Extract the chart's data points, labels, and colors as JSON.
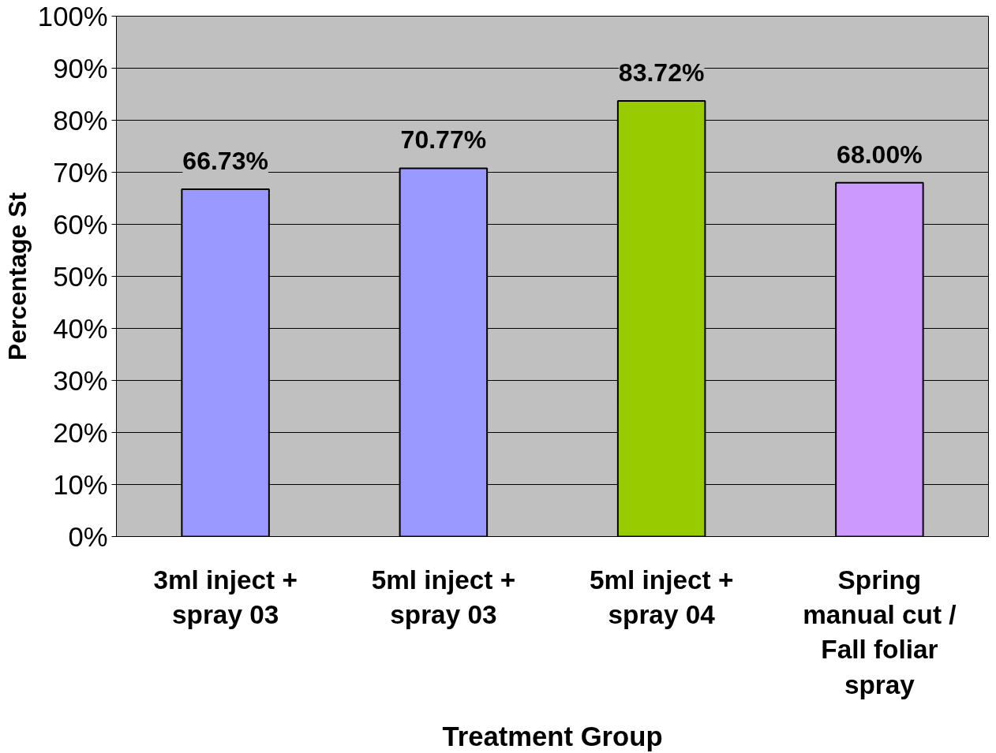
{
  "chart_data": {
    "type": "bar",
    "xlabel": "Treatment Group",
    "ylabel": "Percentage St",
    "categories": [
      "3ml inject + spray 03",
      "5ml inject + spray 03",
      "5ml inject + spray 04",
      "Spring manual cut / Fall foliar spray"
    ],
    "values": [
      66.73,
      70.77,
      83.72,
      68.0
    ],
    "colors": [
      "#9999ff",
      "#9999ff",
      "#99cc00",
      "#cc99ff"
    ],
    "value_labels": [
      "66.73%",
      "70.77%",
      "83.72%",
      "68.00%"
    ],
    "ylim": [
      0,
      100
    ],
    "yticks": [
      {
        "value": 0,
        "label": "0%"
      },
      {
        "value": 10,
        "label": "10%"
      },
      {
        "value": 20,
        "label": "20%"
      },
      {
        "value": 30,
        "label": "30%"
      },
      {
        "value": 40,
        "label": "40%"
      },
      {
        "value": 50,
        "label": "50%"
      },
      {
        "value": 60,
        "label": "60%"
      },
      {
        "value": 70,
        "label": "70%"
      },
      {
        "value": 80,
        "label": "80%"
      },
      {
        "value": 90,
        "label": "90%"
      },
      {
        "value": 100,
        "label": "100%"
      }
    ],
    "grid": "y"
  }
}
